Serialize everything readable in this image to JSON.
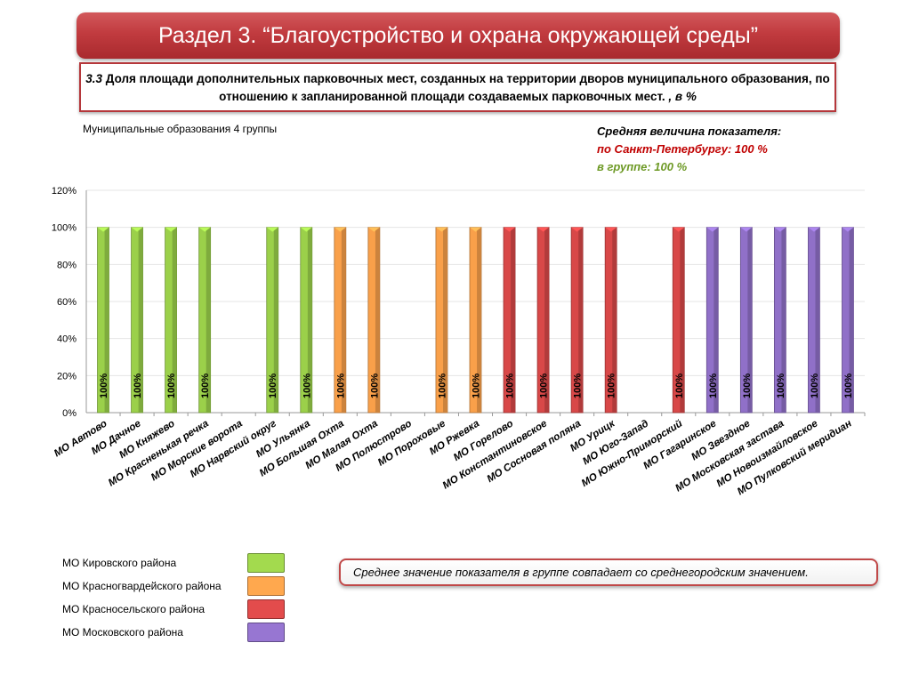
{
  "header": {
    "title": "Раздел 3. “Благоустройство и охрана окружающей среды”"
  },
  "indicator": {
    "number": "3.3",
    "text": " Доля площади дополнительных парковочных мест, созданных на территории дворов муниципального образования, по отношению к запланированной площади создаваемых парковочных мест. ",
    "unit": ", в %"
  },
  "group_label": "Муниципальные образования 4 группы",
  "average": {
    "heading": "Средняя величина показателя:",
    "spb": "по Санкт-Петербургу:  100 %",
    "group": "в группе:  100 %"
  },
  "legend": [
    {
      "label": "МО Кировского района",
      "color": "#9bd04a"
    },
    {
      "label": "МО Красногвардейского района",
      "color": "#f9a04a"
    },
    {
      "label": "МО Красносельского района",
      "color": "#d84848"
    },
    {
      "label": "МО Московского района",
      "color": "#9070c8"
    }
  ],
  "note": "Среднее значение показателя в группе совпадает со среднегородским значением.",
  "chart_data": {
    "type": "bar",
    "categories": [
      "МО Автово",
      "МО Дачное",
      "МО Княжево",
      "МО Красненькая речка",
      "МО Морские ворота",
      "МО Нарвский округ",
      "МО Ульянка",
      "МО Большая Охта",
      "МО Малая Охта",
      "МО Полюстрово",
      "МО Пороховые",
      "МО Ржевка",
      "МО Горелово",
      "МО Константиновское",
      "МО Сосновая поляна",
      "МО Урицк",
      "МО Юго-Запад",
      "МО Южно-Приморский",
      "МО Гагаринское",
      "МО Звездное",
      "МО Московская застава",
      "МО Новоизмайловское",
      "МО Пулковский меридиан"
    ],
    "values": [
      100,
      100,
      100,
      100,
      null,
      100,
      100,
      100,
      100,
      null,
      100,
      100,
      100,
      100,
      100,
      100,
      null,
      100,
      100,
      100,
      100,
      100,
      100
    ],
    "groups": [
      0,
      0,
      0,
      0,
      0,
      0,
      0,
      1,
      1,
      1,
      1,
      1,
      2,
      2,
      2,
      2,
      2,
      2,
      3,
      3,
      3,
      3,
      3
    ],
    "group_colors": [
      "#9bd04a",
      "#f9a04a",
      "#d84848",
      "#9070c8"
    ],
    "data_labels": [
      "100%",
      "100%",
      "100%",
      "100%",
      "",
      "100%",
      "100%",
      "100%",
      "100%",
      "",
      "100%",
      "100%",
      "100%",
      "100%",
      "100%",
      "100%",
      "",
      "100%",
      "100%",
      "100%",
      "100%",
      "100%",
      "100%"
    ],
    "y_ticks": [
      "0%",
      "20%",
      "40%",
      "60%",
      "80%",
      "100%",
      "120%"
    ],
    "ylim": [
      0,
      120
    ],
    "grid": true
  }
}
